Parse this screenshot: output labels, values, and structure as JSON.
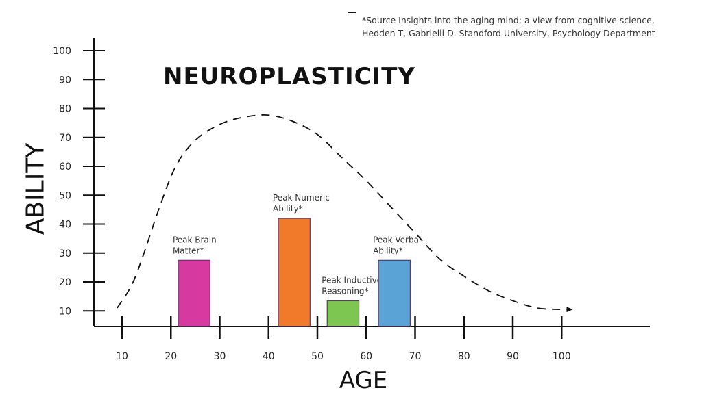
{
  "source": {
    "line1": "*Source Insights into the aging mind: a view from cognitive science,",
    "line2": "Hedden T, Gabrielli D. Standford University, Psychology Department"
  },
  "chart_data": {
    "type": "bar",
    "title": "NEUROPLASTICITY",
    "xlabel": "AGE",
    "ylabel": "ABILITY",
    "xlim": [
      5,
      115
    ],
    "ylim": [
      0,
      100
    ],
    "x_ticks": [
      10,
      20,
      30,
      40,
      50,
      60,
      70,
      80,
      90,
      100
    ],
    "y_ticks": [
      10,
      20,
      30,
      40,
      50,
      60,
      70,
      80,
      90,
      100
    ],
    "bars": [
      {
        "label_lines": [
          "Peak Brain",
          "Matter*"
        ],
        "x_start": 21.5,
        "x_end": 28,
        "value": 27.5,
        "color": "#d63aa0"
      },
      {
        "label_lines": [
          "Peak Numeric",
          "Ability*"
        ],
        "x_start": 42,
        "x_end": 48.5,
        "value": 42,
        "color": "#f07a2a"
      },
      {
        "label_lines": [
          "Peak Inductive",
          "Reasoning*"
        ],
        "x_start": 52,
        "x_end": 58.5,
        "value": 13.5,
        "color": "#7dc652"
      },
      {
        "label_lines": [
          "Peak Verbal",
          "Ability*"
        ],
        "x_start": 62.5,
        "x_end": 69,
        "value": 27.5,
        "color": "#5aa3d6"
      }
    ],
    "trend_curve": {
      "style": "dashed",
      "arrow": "end",
      "points": [
        [
          9,
          11
        ],
        [
          12,
          19
        ],
        [
          14.5,
          30
        ],
        [
          17.5,
          45
        ],
        [
          21,
          60
        ],
        [
          25,
          69
        ],
        [
          30,
          74.5
        ],
        [
          35,
          77
        ],
        [
          40,
          77.7
        ],
        [
          45,
          75.5
        ],
        [
          50,
          71
        ],
        [
          55,
          63
        ],
        [
          60,
          55
        ],
        [
          65,
          46
        ],
        [
          70,
          37
        ],
        [
          75,
          28
        ],
        [
          80,
          22
        ],
        [
          85,
          17
        ],
        [
          90,
          13.5
        ],
        [
          95,
          11
        ],
        [
          100,
          10.5
        ],
        [
          102,
          10.5
        ]
      ]
    }
  }
}
